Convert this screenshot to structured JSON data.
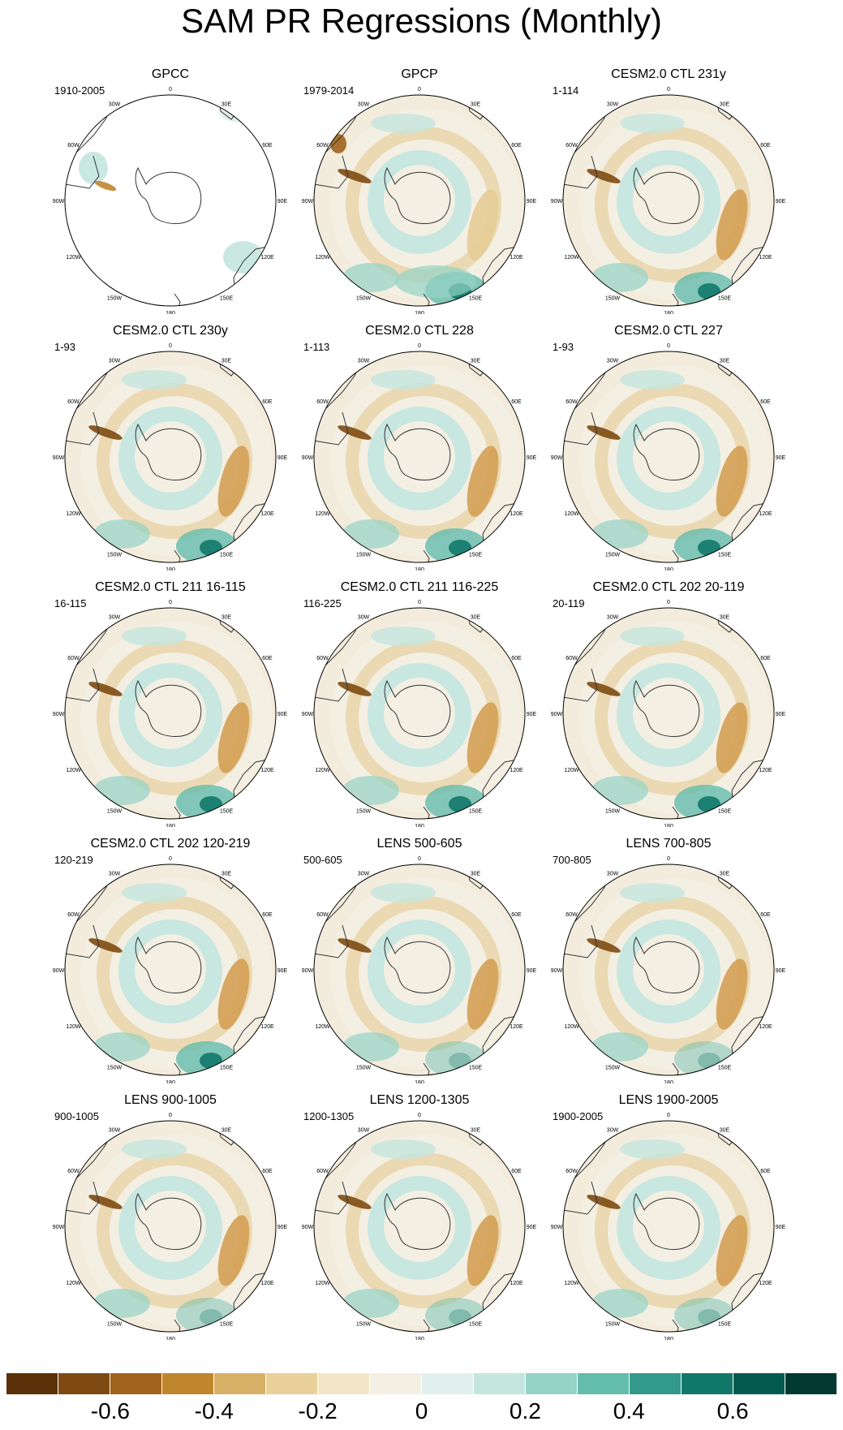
{
  "title": "SAM PR Regressions (Monthly)",
  "panels": [
    {
      "title": "GPCC",
      "period": "1910-2005",
      "pattern": "sparse"
    },
    {
      "title": "GPCP",
      "period": "1979-2014",
      "pattern": "obs"
    },
    {
      "title": "CESM2.0 CTL 231y",
      "period": "1-114",
      "pattern": "model"
    },
    {
      "title": "CESM2.0 CTL 230y",
      "period": "1-93",
      "pattern": "model"
    },
    {
      "title": "CESM2.0 CTL 228",
      "period": "1-113",
      "pattern": "model"
    },
    {
      "title": "CESM2.0 CTL 227",
      "period": "1-93",
      "pattern": "model"
    },
    {
      "title": "CESM2.0 CTL 211 16-115",
      "period": "16-115",
      "pattern": "model"
    },
    {
      "title": "CESM2.0 CTL 211 116-225",
      "period": "116-225",
      "pattern": "model"
    },
    {
      "title": "CESM2.0 CTL 202 20-119",
      "period": "20-119",
      "pattern": "model"
    },
    {
      "title": "CESM2.0 CTL 202 120-219",
      "period": "120-219",
      "pattern": "model"
    },
    {
      "title": "LENS 500-605",
      "period": "500-605",
      "pattern": "lens"
    },
    {
      "title": "LENS 700-805",
      "period": "700-805",
      "pattern": "lens"
    },
    {
      "title": "LENS 900-1005",
      "period": "900-1005",
      "pattern": "lens"
    },
    {
      "title": "LENS 1200-1305",
      "period": "1200-1305",
      "pattern": "lens"
    },
    {
      "title": "LENS 1900-2005",
      "period": "1900-2005",
      "pattern": "lens"
    }
  ],
  "lon_labels": [
    "0",
    "30E",
    "60E",
    "90E",
    "120E",
    "150E",
    "180",
    "150W",
    "120W",
    "90W",
    "60W",
    "30W"
  ],
  "colorbar": {
    "colors": [
      "#5a3008",
      "#7e4a12",
      "#a0641c",
      "#c0862e",
      "#d9b067",
      "#ead09a",
      "#f3e6c6",
      "#f4efe3",
      "#e2f0ed",
      "#c4e6df",
      "#94d3c6",
      "#64bcad",
      "#33998a",
      "#11786a",
      "#045a4e",
      "#023a32"
    ],
    "labels": [
      "-0.6",
      "-0.4",
      "-0.2",
      "0",
      "0.2",
      "0.4",
      "0.6"
    ]
  }
}
